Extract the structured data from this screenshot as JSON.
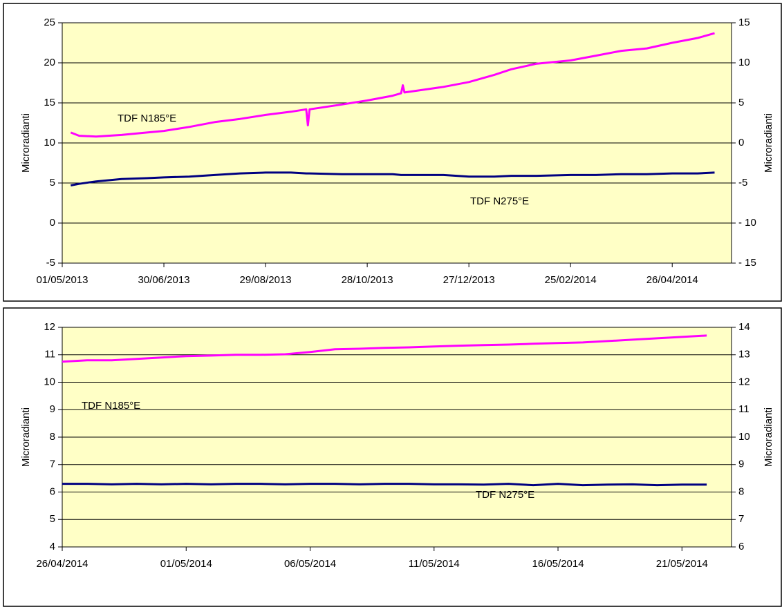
{
  "chart_data": [
    {
      "type": "line",
      "ylabel": "Microradianti",
      "y2label": "Microradianti",
      "grid": true,
      "x": [
        "2013-05-06",
        "2013-05-11",
        "2013-05-21",
        "2013-06-05",
        "2013-06-20",
        "2013-06-30",
        "2013-07-15",
        "2013-07-30",
        "2013-08-14",
        "2013-08-29",
        "2013-09-13",
        "2013-09-22",
        "2013-09-23",
        "2013-09-24",
        "2013-10-13",
        "2013-10-28",
        "2013-11-12",
        "2013-11-17",
        "2013-11-18",
        "2013-11-19",
        "2013-12-12",
        "2013-12-27",
        "2014-01-11",
        "2014-01-21",
        "2014-02-05",
        "2014-02-25",
        "2014-03-12",
        "2014-03-27",
        "2014-04-11",
        "2014-04-26",
        "2014-05-11",
        "2014-05-21"
      ],
      "xlim": [
        "2013-05-01",
        "2014-05-31"
      ],
      "xticks": [
        {
          "value": "2013-05-01",
          "label": "01/05/2013"
        },
        {
          "value": "2013-06-30",
          "label": "30/06/2013"
        },
        {
          "value": "2013-08-29",
          "label": "29/08/2013"
        },
        {
          "value": "2013-10-28",
          "label": "28/10/2013"
        },
        {
          "value": "2013-12-27",
          "label": "27/12/2013"
        },
        {
          "value": "2014-02-25",
          "label": "25/02/2014"
        },
        {
          "value": "2014-04-26",
          "label": "26/04/2014"
        }
      ],
      "ylim": [
        -5,
        25
      ],
      "yticks": [
        -5,
        0,
        5,
        10,
        15,
        20,
        25
      ],
      "y2lim": [
        -15,
        15
      ],
      "y2ticks": [
        {
          "value": -15,
          "label": "- 15"
        },
        {
          "value": -10,
          "label": "- 10"
        },
        -5,
        0,
        5,
        10,
        15
      ],
      "series": [
        {
          "name": "TDF N185°E",
          "color": "#ff00ff",
          "values": [
            11.3,
            10.9,
            10.8,
            11.0,
            11.3,
            11.5,
            12.0,
            12.6,
            13.0,
            13.5,
            13.9,
            14.2,
            12.2,
            14.2,
            14.8,
            15.3,
            15.9,
            16.2,
            17.2,
            16.3,
            17.0,
            17.6,
            18.5,
            19.2,
            19.9,
            20.3,
            20.9,
            21.5,
            21.8,
            22.5,
            23.1,
            23.7
          ]
        },
        {
          "name": "TDF N275°E",
          "color": "#000080",
          "values": [
            4.7,
            4.9,
            5.2,
            5.5,
            5.6,
            5.7,
            5.8,
            6.0,
            6.2,
            6.3,
            6.3,
            6.2,
            6.2,
            6.2,
            6.1,
            6.1,
            6.1,
            6.0,
            6.0,
            6.0,
            6.0,
            5.8,
            5.8,
            5.9,
            5.9,
            6.0,
            6.0,
            6.1,
            6.1,
            6.2,
            6.2,
            6.3
          ]
        }
      ]
    },
    {
      "type": "line",
      "ylabel": "Microradianti",
      "y2label": "Microradianti",
      "grid": true,
      "x": [
        "2014-04-26",
        "2014-04-27",
        "2014-04-28",
        "2014-04-29",
        "2014-04-30",
        "2014-05-01",
        "2014-05-02",
        "2014-05-03",
        "2014-05-04",
        "2014-05-05",
        "2014-05-06",
        "2014-05-07",
        "2014-05-08",
        "2014-05-09",
        "2014-05-10",
        "2014-05-11",
        "2014-05-12",
        "2014-05-13",
        "2014-05-14",
        "2014-05-15",
        "2014-05-16",
        "2014-05-17",
        "2014-05-18",
        "2014-05-19",
        "2014-05-20",
        "2014-05-21",
        "2014-05-22"
      ],
      "xlim": [
        "2014-04-26",
        "2014-05-23"
      ],
      "xticks": [
        {
          "value": "2014-04-26",
          "label": "26/04/2014"
        },
        {
          "value": "2014-05-01",
          "label": "01/05/2014"
        },
        {
          "value": "2014-05-06",
          "label": "06/05/2014"
        },
        {
          "value": "2014-05-11",
          "label": "11/05/2014"
        },
        {
          "value": "2014-05-16",
          "label": "16/05/2014"
        },
        {
          "value": "2014-05-21",
          "label": "21/05/2014"
        }
      ],
      "ylim": [
        4,
        12
      ],
      "yticks": [
        4,
        5,
        6,
        7,
        8,
        9,
        10,
        11,
        12
      ],
      "y2lim": [
        6,
        14
      ],
      "y2ticks": [
        6,
        7,
        8,
        9,
        10,
        11,
        12,
        13,
        14
      ],
      "series": [
        {
          "name": "TDF N185°E",
          "color": "#ff00ff",
          "values": [
            10.75,
            10.8,
            10.8,
            10.85,
            10.9,
            10.95,
            10.97,
            11.0,
            11.0,
            11.02,
            11.1,
            11.2,
            11.22,
            11.25,
            11.27,
            11.3,
            11.33,
            11.35,
            11.37,
            11.4,
            11.43,
            11.45,
            11.5,
            11.55,
            11.6,
            11.65,
            11.7
          ]
        },
        {
          "name": "TDF N275°E",
          "color": "#000080",
          "values": [
            6.3,
            6.3,
            6.28,
            6.3,
            6.28,
            6.3,
            6.28,
            6.3,
            6.3,
            6.28,
            6.3,
            6.3,
            6.28,
            6.3,
            6.3,
            6.28,
            6.28,
            6.27,
            6.3,
            6.25,
            6.3,
            6.25,
            6.27,
            6.28,
            6.25,
            6.27,
            6.27
          ]
        }
      ]
    }
  ]
}
